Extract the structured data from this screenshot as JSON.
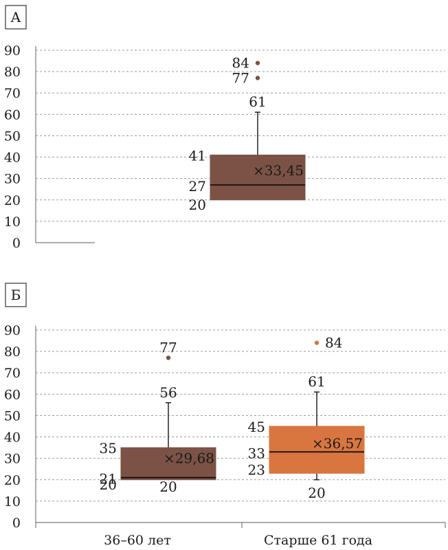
{
  "chart_data": [
    {
      "type": "box",
      "panel_label": "А",
      "ylim": [
        0,
        90
      ],
      "yticks": [
        0,
        10,
        20,
        30,
        40,
        50,
        60,
        70,
        80,
        90
      ],
      "grid": true,
      "categories": [
        ""
      ],
      "boxes": [
        {
          "category": "",
          "color": "#7b5245",
          "min": 20,
          "q1": 20,
          "median": 27,
          "q3": 41,
          "max": 61,
          "mean": 33.45,
          "mean_label": "×33,45",
          "outliers": [
            84,
            77
          ]
        }
      ]
    },
    {
      "type": "box",
      "panel_label": "Б",
      "ylim": [
        0,
        90
      ],
      "yticks": [
        0,
        10,
        20,
        30,
        40,
        50,
        60,
        70,
        80,
        90
      ],
      "grid": true,
      "categories": [
        "36–60 лет",
        "Старше 61 года"
      ],
      "boxes": [
        {
          "category": "36–60 лет",
          "color": "#7b5245",
          "min": 20,
          "q1": 20,
          "median": 21,
          "q3": 35,
          "max": 56,
          "mean": 29.68,
          "mean_label": "×29,68",
          "outliers": [
            77
          ]
        },
        {
          "category": "Старше 61 года",
          "color": "#d9763f",
          "min": 20,
          "q1": 23,
          "median": 33,
          "q3": 45,
          "max": 61,
          "mean": 36.57,
          "mean_label": "×36,57",
          "outliers": [
            84
          ]
        }
      ]
    }
  ]
}
